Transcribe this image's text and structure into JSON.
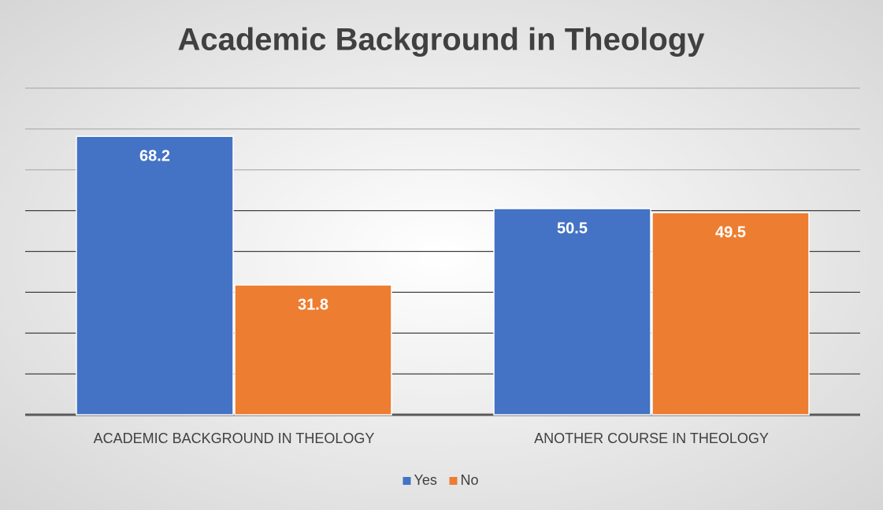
{
  "chart_data": {
    "type": "bar",
    "title": "Academic Background in Theology",
    "categories": [
      "ACADEMIC BACKGROUND IN THEOLOGY",
      "ANOTHER COURSE IN THEOLOGY"
    ],
    "series": [
      {
        "name": "Yes",
        "color": "#4472c4",
        "values": [
          68.2,
          50.5
        ]
      },
      {
        "name": "No",
        "color": "#ed7d31",
        "values": [
          31.8,
          49.5
        ]
      }
    ],
    "ylim": [
      0,
      80
    ],
    "yticks": [
      0,
      10,
      20,
      30,
      40,
      50,
      60,
      70,
      80
    ],
    "grid": true,
    "legend": "bottom"
  }
}
